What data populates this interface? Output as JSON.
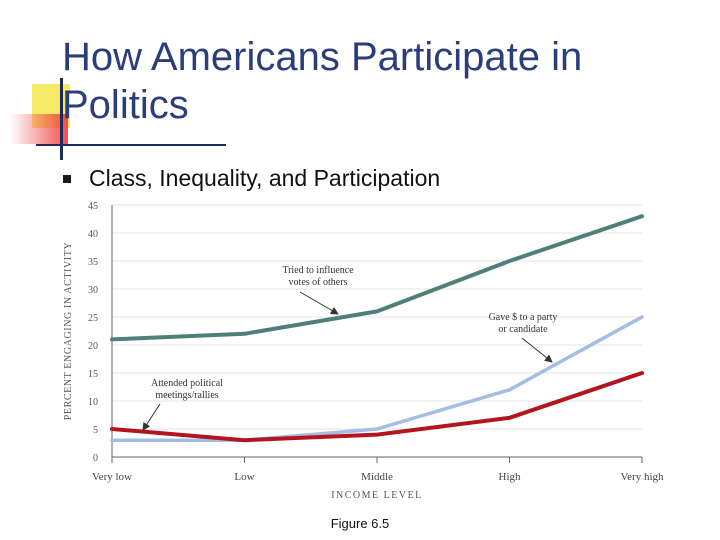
{
  "slide": {
    "title": "How Americans Participate in Politics",
    "bullet": "Class, Inequality, and Participation",
    "caption": "Figure 6.5"
  },
  "chart_data": {
    "type": "line",
    "categories": [
      "Very low",
      "Low",
      "Middle",
      "High",
      "Very high"
    ],
    "xlabel": "INCOME LEVEL",
    "ylabel": "PERCENT ENGAGING IN ACTIVITY",
    "ylim": [
      0,
      45
    ],
    "yticks": [
      0,
      5,
      10,
      15,
      20,
      25,
      30,
      35,
      40,
      45
    ],
    "grid": true,
    "series": [
      {
        "name": "Tried to influence votes of others",
        "values": [
          21,
          22,
          26,
          35,
          43
        ],
        "color": "#4f7f79"
      },
      {
        "name": "Gave $ to a party or candidate",
        "values": [
          3,
          3,
          5,
          12,
          25
        ],
        "color": "#a4bde3"
      },
      {
        "name": "Attended political meetings/rallies",
        "values": [
          5,
          3,
          4,
          7,
          15
        ],
        "color": "#b4141e"
      }
    ],
    "annotations": [
      {
        "lines": [
          "Tried to influence",
          "votes of others"
        ],
        "series": 0
      },
      {
        "lines": [
          "Gave $ to a party",
          "or candidate"
        ],
        "series": 1
      },
      {
        "lines": [
          "Attended political",
          "meetings/rallies"
        ],
        "series": 2
      }
    ]
  }
}
